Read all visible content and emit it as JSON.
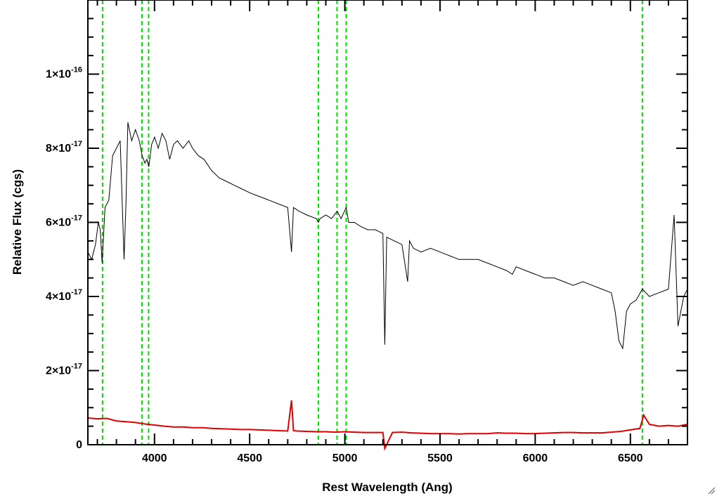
{
  "chart_data": {
    "type": "line",
    "title": "",
    "xlabel": "Rest Wavelength (Ang)",
    "ylabel": "Relative Flux (cgs)",
    "xlim": [
      3650,
      6800
    ],
    "ylim": [
      0,
      1.2e-16
    ],
    "x_ticks": [
      4000,
      4500,
      5000,
      5500,
      6000,
      6500
    ],
    "y_ticks": [
      {
        "value": 0,
        "mantissa": "0",
        "exponent": ""
      },
      {
        "value": 2e-17,
        "mantissa": "2×10",
        "exponent": "-17"
      },
      {
        "value": 4e-17,
        "mantissa": "4×10",
        "exponent": "-17"
      },
      {
        "value": 6e-17,
        "mantissa": "6×10",
        "exponent": "-17"
      },
      {
        "value": 8e-17,
        "mantissa": "8×10",
        "exponent": "-17"
      },
      {
        "value": 1e-16,
        "mantissa": "1×10",
        "exponent": "-16"
      }
    ],
    "grid": false,
    "colors": {
      "spectrum": "#000000",
      "error": "#e00000",
      "lines": "#00dd00"
    },
    "reference_lines": [
      3727,
      3934,
      3969,
      4861,
      4959,
      5007,
      6563
    ],
    "series": [
      {
        "role": "spectrum",
        "x": [
          3650,
          3670,
          3690,
          3705,
          3715,
          3725,
          3740,
          3760,
          3780,
          3800,
          3820,
          3840,
          3850,
          3860,
          3880,
          3900,
          3920,
          3935,
          3950,
          3960,
          3970,
          3985,
          4000,
          4020,
          4040,
          4060,
          4080,
          4100,
          4120,
          4150,
          4180,
          4200,
          4230,
          4260,
          4300,
          4340,
          4380,
          4420,
          4460,
          4500,
          4550,
          4600,
          4650,
          4700,
          4720,
          4730,
          4760,
          4800,
          4850,
          4861,
          4870,
          4900,
          4930,
          4960,
          4980,
          5007,
          5020,
          5050,
          5080,
          5120,
          5160,
          5200,
          5210,
          5220,
          5260,
          5300,
          5330,
          5340,
          5360,
          5400,
          5450,
          5500,
          5550,
          5600,
          5650,
          5700,
          5750,
          5800,
          5850,
          5880,
          5900,
          5950,
          6000,
          6050,
          6100,
          6150,
          6200,
          6250,
          6300,
          6350,
          6400,
          6420,
          6440,
          6460,
          6480,
          6500,
          6530,
          6563,
          6600,
          6650,
          6700,
          6730,
          6750,
          6780,
          6800
        ],
        "y": [
          5.2e-17,
          5e-17,
          5.4e-17,
          6e-17,
          5.8e-17,
          4.9e-17,
          6.4e-17,
          6.6e-17,
          7.8e-17,
          8e-17,
          8.2e-17,
          5e-17,
          6.5e-17,
          8.7e-17,
          8.2e-17,
          8.5e-17,
          8.2e-17,
          7.8e-17,
          7.6e-17,
          7.7e-17,
          7.5e-17,
          8.1e-17,
          8.3e-17,
          8e-17,
          8.4e-17,
          8.2e-17,
          7.7e-17,
          8.1e-17,
          8.2e-17,
          8e-17,
          8.2e-17,
          8e-17,
          7.8e-17,
          7.7e-17,
          7.4e-17,
          7.2e-17,
          7.1e-17,
          7e-17,
          6.9e-17,
          6.8e-17,
          6.7e-17,
          6.6e-17,
          6.5e-17,
          6.4e-17,
          5.2e-17,
          6.4e-17,
          6.3e-17,
          6.2e-17,
          6.1e-17,
          6e-17,
          6.1e-17,
          6.2e-17,
          6.1e-17,
          6.3e-17,
          6.1e-17,
          6.4e-17,
          6e-17,
          6e-17,
          5.9e-17,
          5.8e-17,
          5.8e-17,
          5.7e-17,
          2.7e-17,
          5.6e-17,
          5.5e-17,
          5.4e-17,
          4.4e-17,
          5.5e-17,
          5.3e-17,
          5.2e-17,
          5.3e-17,
          5.2e-17,
          5.1e-17,
          5e-17,
          5e-17,
          5e-17,
          4.9e-17,
          4.8e-17,
          4.7e-17,
          4.6e-17,
          4.8e-17,
          4.7e-17,
          4.6e-17,
          4.5e-17,
          4.5e-17,
          4.4e-17,
          4.3e-17,
          4.4e-17,
          4.3e-17,
          4.2e-17,
          4.1e-17,
          3.6e-17,
          2.8e-17,
          2.6e-17,
          3.6e-17,
          3.8e-17,
          3.9e-17,
          4.2e-17,
          4e-17,
          4.1e-17,
          4.2e-17,
          6.2e-17,
          3.2e-17,
          4e-17,
          4.2e-17
        ]
      },
      {
        "role": "error",
        "x": [
          3650,
          3700,
          3750,
          3800,
          3850,
          3900,
          3950,
          4000,
          4050,
          4100,
          4150,
          4200,
          4250,
          4300,
          4350,
          4400,
          4450,
          4500,
          4550,
          4600,
          4650,
          4700,
          4720,
          4730,
          4750,
          4800,
          4850,
          4900,
          4950,
          5000,
          5050,
          5100,
          5150,
          5200,
          5210,
          5250,
          5300,
          5350,
          5400,
          5450,
          5500,
          5550,
          5600,
          5650,
          5700,
          5750,
          5800,
          5850,
          5900,
          5950,
          6000,
          6050,
          6100,
          6150,
          6200,
          6250,
          6300,
          6350,
          6400,
          6450,
          6500,
          6550,
          6570,
          6600,
          6650,
          6700,
          6750,
          6800
        ],
        "y": [
          7.2e-18,
          7e-18,
          7.1e-18,
          6.4e-18,
          6.2e-18,
          6e-18,
          5.6e-18,
          5.3e-18,
          5e-18,
          4.8e-18,
          4.8e-18,
          4.6e-18,
          4.6e-18,
          4.4e-18,
          4.3e-18,
          4.2e-18,
          4.1e-18,
          4.1e-18,
          4e-18,
          3.9e-18,
          3.8e-18,
          3.7e-18,
          1.2e-17,
          3.8e-18,
          3.7e-18,
          3.6e-18,
          3.5e-18,
          3.5e-18,
          3.4e-18,
          3.5e-18,
          3.4e-18,
          3.3e-18,
          3.3e-18,
          3.3e-18,
          -1e-18,
          3.3e-18,
          3.4e-18,
          3.2e-18,
          3.1e-18,
          3e-18,
          3e-18,
          3e-18,
          2.9e-18,
          3e-18,
          3e-18,
          3e-18,
          3.2e-18,
          3.1e-18,
          3.1e-18,
          3e-18,
          3e-18,
          3.1e-18,
          3.2e-18,
          3.3e-18,
          3.3e-18,
          3.2e-18,
          3.2e-18,
          3.2e-18,
          3.4e-18,
          3.6e-18,
          4e-18,
          4.4e-18,
          8e-18,
          5.5e-18,
          5e-18,
          5.2e-18,
          5e-18,
          5.5e-18
        ]
      }
    ]
  }
}
